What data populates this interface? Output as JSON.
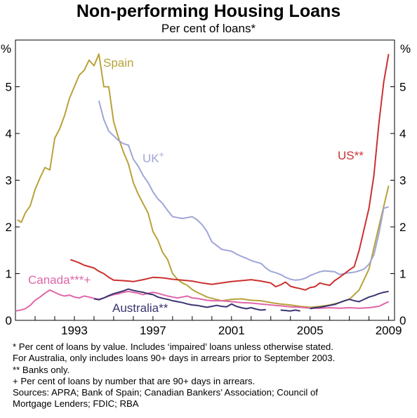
{
  "chart_data": {
    "type": "line",
    "title": "Non-performing Housing Loans",
    "subtitle": "Per cent of loans*",
    "y_unit_left": "%",
    "y_unit_right": "%",
    "xlim": [
      1990.0,
      2009.3
    ],
    "ylim": [
      0,
      6
    ],
    "x_ticks": [
      1993,
      1997,
      2001,
      2005,
      2009
    ],
    "y_ticks": [
      0,
      1,
      2,
      3,
      4,
      5
    ],
    "grid": false,
    "series": [
      {
        "name": "Spain",
        "color": "#b8a23a",
        "points": [
          [
            1990.1,
            2.15
          ],
          [
            1990.3,
            2.1
          ],
          [
            1990.5,
            2.3
          ],
          [
            1990.75,
            2.45
          ],
          [
            1991.0,
            2.8
          ],
          [
            1991.25,
            3.05
          ],
          [
            1991.5,
            3.27
          ],
          [
            1991.75,
            3.22
          ],
          [
            1992.0,
            3.9
          ],
          [
            1992.25,
            4.1
          ],
          [
            1992.5,
            4.38
          ],
          [
            1992.75,
            4.75
          ],
          [
            1993.0,
            5.0
          ],
          [
            1993.25,
            5.25
          ],
          [
            1993.5,
            5.35
          ],
          [
            1993.75,
            5.57
          ],
          [
            1994.0,
            5.45
          ],
          [
            1994.25,
            5.7
          ],
          [
            1994.5,
            5.0
          ],
          [
            1994.75,
            5.0
          ],
          [
            1995.0,
            4.25
          ],
          [
            1995.25,
            3.9
          ],
          [
            1995.5,
            3.6
          ],
          [
            1995.75,
            3.35
          ],
          [
            1996.0,
            2.95
          ],
          [
            1996.25,
            2.7
          ],
          [
            1996.5,
            2.5
          ],
          [
            1996.75,
            2.3
          ],
          [
            1997.0,
            1.9
          ],
          [
            1997.25,
            1.72
          ],
          [
            1997.5,
            1.45
          ],
          [
            1997.75,
            1.3
          ],
          [
            1998.0,
            1.0
          ],
          [
            1998.25,
            0.88
          ],
          [
            1998.5,
            0.8
          ],
          [
            1998.75,
            0.75
          ],
          [
            1999.0,
            0.66
          ],
          [
            1999.25,
            0.6
          ],
          [
            1999.5,
            0.55
          ],
          [
            1999.75,
            0.5
          ],
          [
            2000.0,
            0.47
          ],
          [
            2000.5,
            0.42
          ],
          [
            2001.0,
            0.45
          ],
          [
            2001.5,
            0.46
          ],
          [
            2002.0,
            0.43
          ],
          [
            2002.5,
            0.42
          ],
          [
            2003.0,
            0.38
          ],
          [
            2003.5,
            0.35
          ],
          [
            2004.0,
            0.33
          ],
          [
            2004.5,
            0.3
          ],
          [
            2005.0,
            0.28
          ],
          [
            2005.5,
            0.3
          ],
          [
            2006.0,
            0.33
          ],
          [
            2006.5,
            0.38
          ],
          [
            2007.0,
            0.45
          ],
          [
            2007.5,
            0.65
          ],
          [
            2008.0,
            1.1
          ],
          [
            2008.5,
            2.0
          ],
          [
            2009.0,
            2.88
          ]
        ]
      },
      {
        "name": "UK",
        "label_suffix": "+",
        "color": "#9fa6d6",
        "points": [
          [
            1994.25,
            4.7
          ],
          [
            1994.5,
            4.3
          ],
          [
            1994.75,
            4.05
          ],
          [
            1995.0,
            3.95
          ],
          [
            1995.25,
            3.85
          ],
          [
            1995.5,
            3.78
          ],
          [
            1995.75,
            3.75
          ],
          [
            1996.0,
            3.45
          ],
          [
            1996.25,
            3.3
          ],
          [
            1996.5,
            3.1
          ],
          [
            1996.75,
            2.95
          ],
          [
            1997.0,
            2.75
          ],
          [
            1997.25,
            2.6
          ],
          [
            1997.5,
            2.5
          ],
          [
            1997.75,
            2.35
          ],
          [
            1998.0,
            2.22
          ],
          [
            1998.25,
            2.2
          ],
          [
            1998.5,
            2.18
          ],
          [
            1998.75,
            2.2
          ],
          [
            1999.0,
            2.22
          ],
          [
            1999.25,
            2.15
          ],
          [
            1999.5,
            2.05
          ],
          [
            1999.75,
            1.9
          ],
          [
            2000.0,
            1.68
          ],
          [
            2000.25,
            1.6
          ],
          [
            2000.5,
            1.52
          ],
          [
            2000.75,
            1.5
          ],
          [
            2001.0,
            1.48
          ],
          [
            2001.25,
            1.42
          ],
          [
            2001.5,
            1.37
          ],
          [
            2001.75,
            1.33
          ],
          [
            2002.0,
            1.28
          ],
          [
            2002.25,
            1.25
          ],
          [
            2002.5,
            1.22
          ],
          [
            2002.75,
            1.12
          ],
          [
            2003.0,
            1.05
          ],
          [
            2003.25,
            1.02
          ],
          [
            2003.5,
            0.98
          ],
          [
            2003.75,
            0.92
          ],
          [
            2004.0,
            0.88
          ],
          [
            2004.25,
            0.86
          ],
          [
            2004.5,
            0.87
          ],
          [
            2004.75,
            0.9
          ],
          [
            2005.0,
            0.96
          ],
          [
            2005.25,
            1.0
          ],
          [
            2005.5,
            1.04
          ],
          [
            2005.75,
            1.06
          ],
          [
            2006.0,
            1.05
          ],
          [
            2006.25,
            1.04
          ],
          [
            2006.5,
            0.98
          ],
          [
            2006.75,
            1.0
          ],
          [
            2007.0,
            1.02
          ],
          [
            2007.25,
            1.03
          ],
          [
            2007.5,
            1.06
          ],
          [
            2007.75,
            1.1
          ],
          [
            2008.0,
            1.2
          ],
          [
            2008.25,
            1.4
          ],
          [
            2008.5,
            1.85
          ],
          [
            2008.75,
            2.4
          ],
          [
            2009.0,
            2.43
          ]
        ]
      },
      {
        "name": "US",
        "label_suffix": "**",
        "color": "#cc3030",
        "points": [
          [
            1992.8,
            1.3
          ],
          [
            1993.0,
            1.27
          ],
          [
            1993.25,
            1.23
          ],
          [
            1993.5,
            1.18
          ],
          [
            1993.75,
            1.15
          ],
          [
            1994.0,
            1.12
          ],
          [
            1994.25,
            1.05
          ],
          [
            1994.5,
            1.0
          ],
          [
            1994.75,
            0.92
          ],
          [
            1995.0,
            0.86
          ],
          [
            1995.5,
            0.85
          ],
          [
            1996.0,
            0.83
          ],
          [
            1996.5,
            0.87
          ],
          [
            1997.0,
            0.92
          ],
          [
            1997.5,
            0.91
          ],
          [
            1998.0,
            0.88
          ],
          [
            1998.5,
            0.86
          ],
          [
            1999.0,
            0.84
          ],
          [
            1999.5,
            0.8
          ],
          [
            2000.0,
            0.77
          ],
          [
            2000.5,
            0.8
          ],
          [
            2001.0,
            0.83
          ],
          [
            2001.5,
            0.85
          ],
          [
            2002.0,
            0.87
          ],
          [
            2002.5,
            0.84
          ],
          [
            2003.0,
            0.8
          ],
          [
            2003.25,
            0.72
          ],
          [
            2003.5,
            0.76
          ],
          [
            2003.75,
            0.82
          ],
          [
            2004.0,
            0.73
          ],
          [
            2004.25,
            0.7
          ],
          [
            2004.5,
            0.68
          ],
          [
            2004.75,
            0.65
          ],
          [
            2005.0,
            0.7
          ],
          [
            2005.25,
            0.72
          ],
          [
            2005.5,
            0.8
          ],
          [
            2005.75,
            0.77
          ],
          [
            2006.0,
            0.75
          ],
          [
            2006.25,
            0.85
          ],
          [
            2006.5,
            0.92
          ],
          [
            2006.75,
            1.0
          ],
          [
            2007.0,
            1.08
          ],
          [
            2007.25,
            1.15
          ],
          [
            2007.5,
            1.5
          ],
          [
            2007.75,
            1.95
          ],
          [
            2008.0,
            2.4
          ],
          [
            2008.25,
            3.1
          ],
          [
            2008.5,
            4.2
          ],
          [
            2008.75,
            5.1
          ],
          [
            2009.0,
            5.7
          ]
        ]
      },
      {
        "name": "Canada",
        "label_suffix": "***+",
        "color": "#e066a8",
        "points": [
          [
            1990.0,
            0.2
          ],
          [
            1990.25,
            0.22
          ],
          [
            1990.5,
            0.25
          ],
          [
            1990.75,
            0.32
          ],
          [
            1991.0,
            0.43
          ],
          [
            1991.25,
            0.5
          ],
          [
            1991.5,
            0.58
          ],
          [
            1991.75,
            0.65
          ],
          [
            1992.0,
            0.6
          ],
          [
            1992.25,
            0.55
          ],
          [
            1992.5,
            0.52
          ],
          [
            1992.75,
            0.54
          ],
          [
            1993.0,
            0.5
          ],
          [
            1993.25,
            0.48
          ],
          [
            1993.5,
            0.52
          ],
          [
            1993.75,
            0.5
          ],
          [
            1994.0,
            0.47
          ],
          [
            1994.25,
            0.45
          ],
          [
            1994.5,
            0.48
          ],
          [
            1994.75,
            0.52
          ],
          [
            1995.0,
            0.55
          ],
          [
            1995.25,
            0.57
          ],
          [
            1995.5,
            0.6
          ],
          [
            1995.75,
            0.62
          ],
          [
            1996.0,
            0.6
          ],
          [
            1996.25,
            0.58
          ],
          [
            1996.5,
            0.55
          ],
          [
            1996.75,
            0.58
          ],
          [
            1997.0,
            0.6
          ],
          [
            1997.25,
            0.58
          ],
          [
            1997.5,
            0.55
          ],
          [
            1997.75,
            0.52
          ],
          [
            1998.0,
            0.5
          ],
          [
            1998.25,
            0.48
          ],
          [
            1998.5,
            0.5
          ],
          [
            1998.75,
            0.52
          ],
          [
            1999.0,
            0.48
          ],
          [
            1999.25,
            0.47
          ],
          [
            1999.5,
            0.45
          ],
          [
            1999.75,
            0.43
          ],
          [
            2000.0,
            0.42
          ],
          [
            2000.5,
            0.42
          ],
          [
            2001.0,
            0.4
          ],
          [
            2001.5,
            0.38
          ],
          [
            2002.0,
            0.37
          ],
          [
            2002.5,
            0.35
          ],
          [
            2003.0,
            0.33
          ],
          [
            2003.5,
            0.31
          ],
          [
            2004.0,
            0.29
          ],
          [
            2004.5,
            0.28
          ],
          [
            2005.0,
            0.26
          ],
          [
            2005.5,
            0.26
          ],
          [
            2006.0,
            0.27
          ],
          [
            2006.5,
            0.26
          ],
          [
            2007.0,
            0.27
          ],
          [
            2007.5,
            0.26
          ],
          [
            2008.0,
            0.27
          ],
          [
            2008.5,
            0.3
          ],
          [
            2008.75,
            0.35
          ],
          [
            2009.0,
            0.4
          ]
        ]
      },
      {
        "name": "Australia",
        "label_suffix": "**",
        "color": "#3a3470",
        "segments": [
          [
            [
              1994.0,
              0.46
            ],
            [
              1994.25,
              0.44
            ],
            [
              1994.5,
              0.48
            ],
            [
              1994.75,
              0.53
            ],
            [
              1995.0,
              0.57
            ],
            [
              1995.25,
              0.6
            ],
            [
              1995.5,
              0.63
            ],
            [
              1995.75,
              0.67
            ],
            [
              1996.0,
              0.64
            ],
            [
              1996.25,
              0.62
            ],
            [
              1996.5,
              0.6
            ],
            [
              1996.75,
              0.57
            ],
            [
              1997.0,
              0.55
            ],
            [
              1997.25,
              0.5
            ],
            [
              1997.5,
              0.47
            ],
            [
              1997.75,
              0.45
            ],
            [
              1998.0,
              0.42
            ],
            [
              1998.25,
              0.4
            ],
            [
              1998.5,
              0.38
            ],
            [
              1998.75,
              0.35
            ],
            [
              1999.0,
              0.33
            ],
            [
              1999.25,
              0.32
            ],
            [
              1999.5,
              0.3
            ],
            [
              1999.75,
              0.28
            ],
            [
              2000.0,
              0.3
            ],
            [
              2000.25,
              0.32
            ],
            [
              2000.5,
              0.3
            ],
            [
              2000.75,
              0.29
            ],
            [
              2001.0,
              0.35
            ],
            [
              2001.25,
              0.3
            ],
            [
              2001.5,
              0.27
            ],
            [
              2001.75,
              0.25
            ],
            [
              2002.0,
              0.27
            ],
            [
              2002.25,
              0.24
            ],
            [
              2002.5,
              0.22
            ],
            [
              2002.75,
              0.23
            ]
          ],
          [
            [
              2003.5,
              0.22
            ],
            [
              2003.75,
              0.21
            ],
            [
              2004.0,
              0.2
            ],
            [
              2004.25,
              0.22
            ],
            [
              2004.5,
              0.2
            ]
          ],
          [
            [
              2005.0,
              0.25
            ],
            [
              2005.25,
              0.27
            ],
            [
              2005.5,
              0.28
            ],
            [
              2005.75,
              0.3
            ],
            [
              2006.0,
              0.32
            ],
            [
              2006.25,
              0.34
            ],
            [
              2006.5,
              0.38
            ],
            [
              2006.75,
              0.42
            ],
            [
              2007.0,
              0.45
            ],
            [
              2007.25,
              0.42
            ],
            [
              2007.5,
              0.4
            ],
            [
              2007.75,
              0.45
            ],
            [
              2008.0,
              0.5
            ],
            [
              2008.25,
              0.53
            ],
            [
              2008.5,
              0.57
            ],
            [
              2008.75,
              0.6
            ],
            [
              2009.0,
              0.62
            ]
          ]
        ]
      }
    ]
  },
  "notes": [
    "*   Per cent of loans by value. Includes ‘impaired’ loans unless otherwise stated.",
    "     For Australia, only includes loans 90+ days in arrears prior to September 2003.",
    "**  Banks only.",
    "+   Per cent of loans by number that are 90+ days in arrears.",
    "Sources:  APRA; Bank of Spain; Canadian Bankers’ Association; Council of",
    "               Mortgage Lenders; FDIC; RBA"
  ]
}
